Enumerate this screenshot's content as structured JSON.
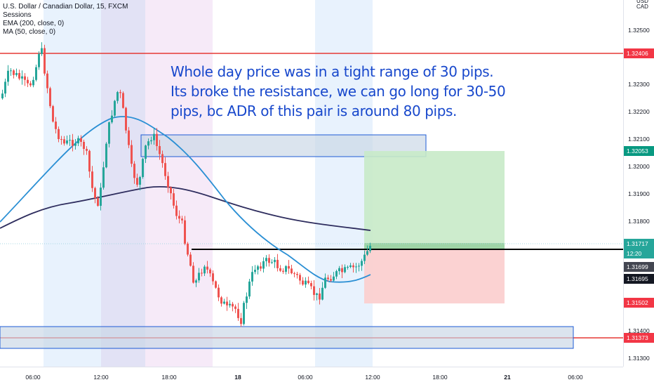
{
  "legend": {
    "symbol": "U.S. Dollar / Canadian Dollar, 15, FXCM",
    "sessions": "Sessions",
    "ema": "EMA (200, close, 0)",
    "ma": "MA (50, close, 0)"
  },
  "annotation": {
    "lines": [
      "Whole day price was in a tight range of 30 pips.",
      "Its broke the resistance, we can go long for 30-50",
      "pips, bc ADR of this pair is around 80 pips."
    ]
  },
  "price_axis": {
    "unit_top": "USD",
    "unit_bottom": "CAD",
    "ticks": [
      "1.32500",
      "1.32300",
      "1.32200",
      "1.32100",
      "1.32000",
      "1.31900",
      "1.31800",
      "1.31400",
      "1.31300"
    ],
    "tags": [
      {
        "text": "1.32406",
        "color": "#f23645"
      },
      {
        "text": "1.32053",
        "color": "#089981"
      },
      {
        "text": "1.31717",
        "color": "#26a69a"
      },
      {
        "text": "12:20",
        "color": "#26a69a"
      },
      {
        "text": "1.31699",
        "color": "#434651"
      },
      {
        "text": "1.31695",
        "color": "#131722"
      },
      {
        "text": "1.31502",
        "color": "#f23645"
      },
      {
        "text": "1.31373",
        "color": "#f23645"
      }
    ]
  },
  "time_axis": {
    "labels": [
      {
        "text": "06:00",
        "bold": false
      },
      {
        "text": "12:00",
        "bold": false
      },
      {
        "text": "18:00",
        "bold": false
      },
      {
        "text": "18",
        "bold": true
      },
      {
        "text": "06:00",
        "bold": false
      },
      {
        "text": "12:00",
        "bold": false
      },
      {
        "text": "18:00",
        "bold": false
      },
      {
        "text": "21",
        "bold": true
      },
      {
        "text": "06:00",
        "bold": false
      }
    ]
  },
  "colors": {
    "up_candle": "#26a69a",
    "down_candle": "#ef5350",
    "ema_line": "#2e2d5e",
    "ma_line": "#2a8fd4",
    "annotation_text": "#1848cc",
    "resistance_line": "#e53935",
    "profit_zone": "#c8eac8",
    "loss_zone": "#fbd0d0"
  },
  "icons": {
    "trade_tool": "long-position-icon"
  }
}
